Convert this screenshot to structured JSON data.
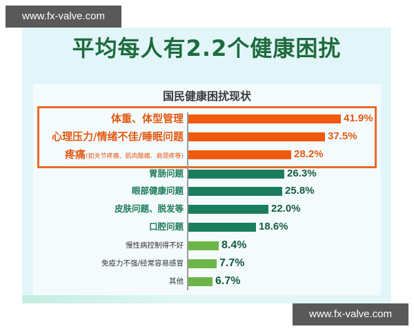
{
  "watermarks": {
    "top": "www.fx-valve.com",
    "bottom": "www.fx-valve.com"
  },
  "header": {
    "title": "平均每人有2.2个健康困扰"
  },
  "colors": {
    "title_green": "#1e6b3c",
    "highlight_orange": "#f05a0e",
    "bar_dark_green": "#1a7d5c",
    "bar_light_green": "#6cb548",
    "panel_bg": "#e2f6fa"
  },
  "chart_data": {
    "type": "bar",
    "orientation": "horizontal",
    "title": "国民健康困扰现状",
    "xlabel": "",
    "ylabel": "",
    "unit": "%",
    "xlim": [
      0,
      45
    ],
    "grid": false,
    "legend": null,
    "categories": [
      "体重、体型管理",
      "心理压力/情绪不佳/睡眠问题",
      "疼痛(如关节疼痛、肌肉酸痛、肩颈疼等)",
      "胃肠问题",
      "眼部健康问题",
      "皮肤问题、脱发等",
      "口腔问题",
      "慢性病控制得不好",
      "免疫力不强/经常容易感冒",
      "其他"
    ],
    "values": [
      41.9,
      37.5,
      28.2,
      26.3,
      25.8,
      22.0,
      18.6,
      8.4,
      7.7,
      6.7
    ],
    "annotations": [
      "Top 3 items highlighted with orange box"
    ],
    "rows": [
      {
        "label": "体重、体型管理",
        "sub": "",
        "value": 41.9,
        "display": "41.9%",
        "tier": "orange"
      },
      {
        "label": "心理压力/情绪不佳/睡眠问题",
        "sub": "",
        "value": 37.5,
        "display": "37.5%",
        "tier": "orange"
      },
      {
        "label": "疼痛",
        "sub": "(如关节疼痛、肌肉酸痛、肩颈疼等)",
        "value": 28.2,
        "display": "28.2%",
        "tier": "orange"
      },
      {
        "label": "胃肠问题",
        "sub": "",
        "value": 26.3,
        "display": "26.3%",
        "tier": "green"
      },
      {
        "label": "眼部健康问题",
        "sub": "",
        "value": 25.8,
        "display": "25.8%",
        "tier": "green"
      },
      {
        "label": "皮肤问题、脱发等",
        "sub": "",
        "value": 22.0,
        "display": "22.0%",
        "tier": "green"
      },
      {
        "label": "口腔问题",
        "sub": "",
        "value": 18.6,
        "display": "18.6%",
        "tier": "green"
      },
      {
        "label": "慢性病控制得不好",
        "sub": "",
        "value": 8.4,
        "display": "8.4%",
        "tier": "light"
      },
      {
        "label": "免疫力不强/经常容易感冒",
        "sub": "",
        "value": 7.7,
        "display": "7.7%",
        "tier": "light"
      },
      {
        "label": "其他",
        "sub": "",
        "value": 6.7,
        "display": "6.7%",
        "tier": "light"
      }
    ]
  }
}
